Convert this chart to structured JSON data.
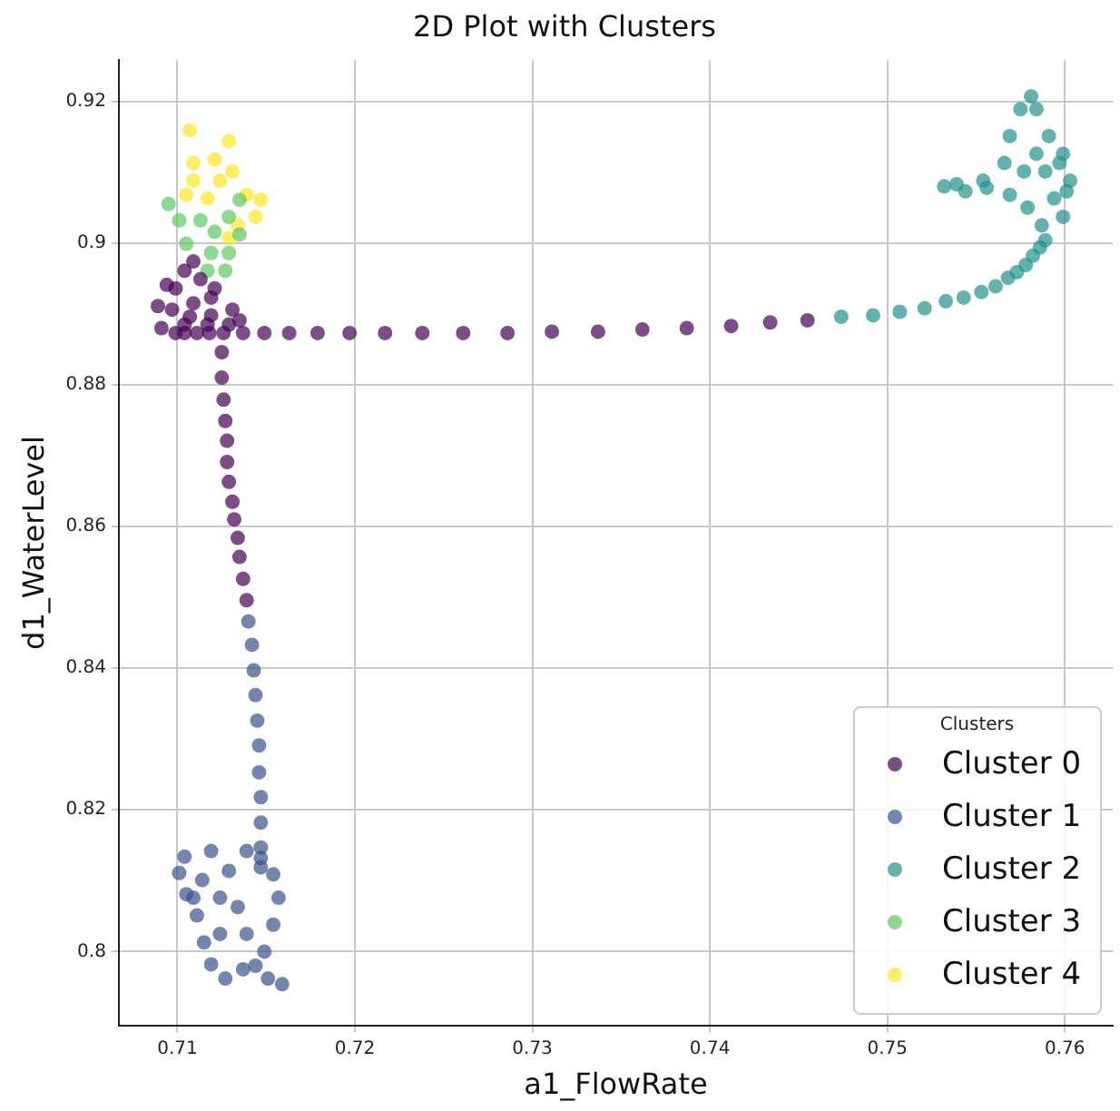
{
  "chart_data": {
    "type": "scatter",
    "title": "2D Plot with Clusters",
    "xlabel": "a1_FlowRate",
    "ylabel": "d1_WaterLevel",
    "legend_title": "Clusters",
    "legend": "bottom right",
    "grid": true,
    "marker": "circle",
    "xlim": [
      0.7067,
      0.7627
    ],
    "ylim": [
      0.7896,
      0.9258
    ],
    "xticks": [
      0.71,
      0.72,
      0.73,
      0.74,
      0.75,
      0.76
    ],
    "yticks": [
      0.8,
      0.82,
      0.84,
      0.86,
      0.88,
      0.9,
      0.92
    ],
    "series": [
      {
        "name": "Cluster 0",
        "color": "#440154",
        "x": [
          0.7099,
          0.7104,
          0.7111,
          0.7118,
          0.7126,
          0.7137,
          0.7149,
          0.7163,
          0.7179,
          0.7197,
          0.7217,
          0.7238,
          0.7261,
          0.7286,
          0.7311,
          0.7337,
          0.7362,
          0.7387,
          0.7412,
          0.7434,
          0.7455,
          0.7125,
          0.7125,
          0.7126,
          0.7127,
          0.7128,
          0.7128,
          0.7129,
          0.7131,
          0.7132,
          0.7134,
          0.7135,
          0.7137,
          0.7139,
          0.7091,
          0.7089,
          0.7094,
          0.7104,
          0.7109,
          0.7099,
          0.7097,
          0.7107,
          0.7119,
          0.7131,
          0.7119,
          0.7109,
          0.7104,
          0.7117,
          0.7129,
          0.7135,
          0.7113,
          0.7121
        ],
        "values": [
          0.8873,
          0.8873,
          0.8873,
          0.8873,
          0.8873,
          0.8873,
          0.8873,
          0.8873,
          0.8873,
          0.8873,
          0.8873,
          0.8873,
          0.8873,
          0.8873,
          0.8875,
          0.8875,
          0.8878,
          0.888,
          0.8883,
          0.8888,
          0.8891,
          0.8846,
          0.881,
          0.8779,
          0.8749,
          0.8721,
          0.8691,
          0.8663,
          0.8635,
          0.861,
          0.8584,
          0.8557,
          0.8526,
          0.8496,
          0.888,
          0.8911,
          0.8941,
          0.8961,
          0.8974,
          0.8936,
          0.8906,
          0.8896,
          0.8898,
          0.8906,
          0.8923,
          0.8915,
          0.8885,
          0.8885,
          0.8885,
          0.8891,
          0.8949,
          0.8936
        ]
      },
      {
        "name": "Cluster 1",
        "color": "#3b528b",
        "x": [
          0.714,
          0.7142,
          0.7143,
          0.7144,
          0.7145,
          0.7146,
          0.7146,
          0.7147,
          0.7147,
          0.7147,
          0.7147,
          0.7139,
          0.7119,
          0.7104,
          0.7101,
          0.7105,
          0.7111,
          0.7115,
          0.7119,
          0.7127,
          0.7137,
          0.7144,
          0.7151,
          0.7159,
          0.7149,
          0.7154,
          0.7157,
          0.7154,
          0.7147,
          0.7129,
          0.7114,
          0.7124,
          0.7134,
          0.7139,
          0.7124,
          0.7109
        ],
        "values": [
          0.8466,
          0.8433,
          0.8397,
          0.8362,
          0.8326,
          0.8291,
          0.8253,
          0.8218,
          0.8182,
          0.8147,
          0.8132,
          0.8142,
          0.8142,
          0.8134,
          0.8111,
          0.8081,
          0.8051,
          0.8013,
          0.7982,
          0.7962,
          0.7975,
          0.798,
          0.7962,
          0.7954,
          0.8,
          0.8038,
          0.8076,
          0.8109,
          0.8119,
          0.8114,
          0.8101,
          0.8076,
          0.8063,
          0.8025,
          0.8025,
          0.8076
        ]
      },
      {
        "name": "Cluster 2",
        "color": "#21918c",
        "x": [
          0.7474,
          0.7492,
          0.7507,
          0.7521,
          0.7533,
          0.7543,
          0.7553,
          0.7561,
          0.7568,
          0.7573,
          0.7578,
          0.7582,
          0.7586,
          0.7589,
          0.7599,
          0.7603,
          0.7599,
          0.7591,
          0.7584,
          0.7581,
          0.7575,
          0.7569,
          0.7566,
          0.7554,
          0.7539,
          0.7532,
          0.7544,
          0.7556,
          0.7569,
          0.7579,
          0.7587,
          0.7594,
          0.7589,
          0.7597,
          0.7601,
          0.7577,
          0.7584
        ],
        "values": [
          0.8896,
          0.8898,
          0.8903,
          0.8908,
          0.8918,
          0.8923,
          0.8931,
          0.8939,
          0.8951,
          0.8959,
          0.8969,
          0.8982,
          0.8994,
          0.9004,
          0.9037,
          0.9088,
          0.9126,
          0.9151,
          0.9189,
          0.9207,
          0.9189,
          0.9151,
          0.9113,
          0.9088,
          0.9083,
          0.908,
          0.9073,
          0.9078,
          0.9068,
          0.905,
          0.9025,
          0.9063,
          0.9101,
          0.9113,
          0.9073,
          0.9101,
          0.9126
        ]
      },
      {
        "name": "Cluster 3",
        "color": "#5ec962",
        "x": [
          0.7095,
          0.7101,
          0.7105,
          0.7127,
          0.7119,
          0.7121,
          0.7129,
          0.7135,
          0.7135,
          0.7129,
          0.7117,
          0.7113
        ],
        "values": [
          0.9055,
          0.9032,
          0.8999,
          0.8961,
          0.8986,
          0.9016,
          0.9037,
          0.9061,
          0.9012,
          0.8986,
          0.8961,
          0.9032
        ]
      },
      {
        "name": "Cluster 4",
        "color": "#fde725",
        "x": [
          0.7107,
          0.7109,
          0.7105,
          0.7124,
          0.7129,
          0.7131,
          0.7139,
          0.7147,
          0.7144,
          0.7134,
          0.7129,
          0.7117,
          0.7109,
          0.7121
        ],
        "values": [
          0.9159,
          0.9113,
          0.9068,
          0.9088,
          0.9144,
          0.9101,
          0.9068,
          0.9061,
          0.9037,
          0.9025,
          0.9007,
          0.9063,
          0.9088,
          0.9118
        ]
      }
    ]
  }
}
